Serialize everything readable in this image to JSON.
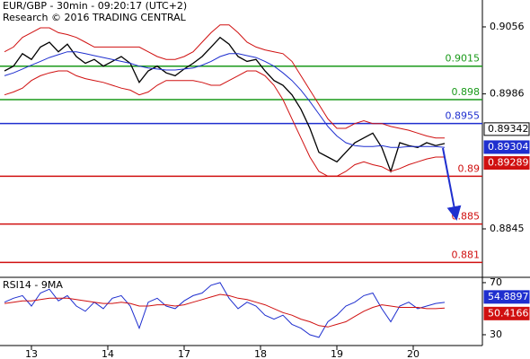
{
  "chart_data": [
    {
      "type": "line",
      "title": "EUR/GBP - 30min - 09:20:17 (UTC+2)",
      "subtitle": "Research © 2016 TRADING CENTRAL",
      "xlim": [
        -0.5,
        53.2
      ],
      "ylim": [
        0.87953,
        0.90841
      ],
      "yticks": [
        0.9056,
        0.8986,
        0.8845
      ],
      "series": [
        {
          "color": "#000000",
          "values": [
            0.901,
            0.9015,
            0.9028,
            0.9022,
            0.9035,
            0.904,
            0.903,
            0.9038,
            0.9025,
            0.9018,
            0.9022,
            0.9015,
            0.902,
            0.9025,
            0.9018,
            0.8998,
            0.901,
            0.9015,
            0.9008,
            0.9005,
            0.9012,
            0.9018,
            0.9025,
            0.9035,
            0.9045,
            0.9038,
            0.9025,
            0.902,
            0.9022,
            0.901,
            0.9,
            0.8995,
            0.8985,
            0.897,
            0.895,
            0.8925,
            0.892,
            0.8915,
            0.8925,
            0.8935,
            0.894,
            0.8945,
            0.893,
            0.8905,
            0.8935,
            0.8932,
            0.893,
            0.8935,
            0.8932,
            0.89342
          ]
        },
        {
          "color": "#1f2fcf",
          "values": [
            0.9005,
            0.9008,
            0.9012,
            0.9016,
            0.902,
            0.9024,
            0.9027,
            0.903,
            0.903,
            0.9028,
            0.9026,
            0.9024,
            0.9022,
            0.902,
            0.9018,
            0.9015,
            0.9013,
            0.9012,
            0.9011,
            0.9011,
            0.9012,
            0.9013,
            0.9016,
            0.902,
            0.9025,
            0.9028,
            0.9028,
            0.9026,
            0.9024,
            0.902,
            0.9015,
            0.9008,
            0.9,
            0.899,
            0.8978,
            0.8965,
            0.8952,
            0.8942,
            0.8935,
            0.8932,
            0.8931,
            0.8931,
            0.8932,
            0.893,
            0.893,
            0.8931,
            0.8931,
            0.8931,
            0.8931,
            0.893
          ]
        },
        {
          "color": "#d01010",
          "values": [
            0.903,
            0.9035,
            0.9045,
            0.905,
            0.9055,
            0.9055,
            0.905,
            0.9048,
            0.9045,
            0.904,
            0.9035,
            0.9035,
            0.9035,
            0.9035,
            0.9035,
            0.9035,
            0.903,
            0.9025,
            0.9022,
            0.9022,
            0.9025,
            0.903,
            0.904,
            0.905,
            0.9058,
            0.9058,
            0.905,
            0.904,
            0.9035,
            0.9032,
            0.903,
            0.9028,
            0.902,
            0.9005,
            0.899,
            0.8975,
            0.896,
            0.895,
            0.895,
            0.8955,
            0.8958,
            0.8955,
            0.8955,
            0.8952,
            0.895,
            0.8948,
            0.8945,
            0.8942,
            0.894,
            0.894
          ]
        },
        {
          "color": "#d01010",
          "values": [
            0.8985,
            0.8988,
            0.8992,
            0.9,
            0.9005,
            0.9008,
            0.901,
            0.901,
            0.9005,
            0.9002,
            0.9,
            0.8998,
            0.8995,
            0.8992,
            0.899,
            0.8985,
            0.8988,
            0.8995,
            0.9,
            0.9,
            0.9,
            0.9,
            0.8998,
            0.8995,
            0.8995,
            0.9,
            0.9005,
            0.901,
            0.901,
            0.9005,
            0.8995,
            0.898,
            0.896,
            0.894,
            0.892,
            0.8905,
            0.89,
            0.89,
            0.8905,
            0.8912,
            0.8915,
            0.8912,
            0.891,
            0.8905,
            0.8908,
            0.8912,
            0.8915,
            0.8918,
            0.892,
            0.892
          ]
        }
      ],
      "levels": [
        {
          "value": 0.9015,
          "color": "#1a9a1a"
        },
        {
          "value": 0.898,
          "color": "#1a9a1a"
        },
        {
          "value": 0.8955,
          "color": "#1f2fcf"
        },
        {
          "value": 0.89,
          "color": "#d01010"
        },
        {
          "value": 0.885,
          "color": "#d01010"
        },
        {
          "value": 0.881,
          "color": "#d01010"
        }
      ],
      "price_labels": [
        {
          "value": 0.89342,
          "color": "#000000"
        },
        {
          "value": 0.89304,
          "color": "#1f2fcf"
        },
        {
          "value": 0.89289,
          "color": "#d01010"
        }
      ]
    },
    {
      "type": "line",
      "title": "RSI14 - 9MA",
      "xlim": [
        -0.5,
        53.2
      ],
      "ylim": [
        21.7,
        73.4
      ],
      "yticks": [
        70,
        30
      ],
      "xticks": [
        {
          "value": 3,
          "label": "13"
        },
        {
          "value": 11.5,
          "label": "14"
        },
        {
          "value": 20,
          "label": "17"
        },
        {
          "value": 28.5,
          "label": "18"
        },
        {
          "value": 37,
          "label": "19"
        },
        {
          "value": 45.5,
          "label": "20"
        }
      ],
      "series": [
        {
          "color": "#1f2fcf",
          "values": [
            55,
            58,
            60,
            52,
            62,
            65,
            56,
            60,
            52,
            48,
            55,
            50,
            58,
            60,
            52,
            35,
            55,
            58,
            52,
            50,
            56,
            60,
            62,
            68,
            70,
            58,
            50,
            55,
            52,
            45,
            42,
            45,
            38,
            35,
            30,
            28,
            40,
            45,
            52,
            55,
            60,
            62,
            50,
            40,
            52,
            55,
            50,
            52,
            54,
            54.8897
          ]
        },
        {
          "color": "#d01010",
          "values": [
            54,
            55,
            56,
            56,
            57,
            58,
            58,
            58,
            57,
            56,
            55,
            54,
            54,
            55,
            54,
            52,
            52,
            53,
            53,
            52,
            53,
            55,
            57,
            59,
            61,
            60,
            58,
            57,
            55,
            53,
            50,
            47,
            45,
            42,
            40,
            37,
            36,
            38,
            40,
            44,
            48,
            51,
            53,
            52,
            51,
            51,
            51,
            50,
            50,
            50.4166
          ]
        }
      ],
      "price_labels": [
        {
          "value": 54.8897,
          "color": "#1f2fcf"
        },
        {
          "value": 50.4166,
          "color": "#d01010"
        }
      ]
    }
  ]
}
